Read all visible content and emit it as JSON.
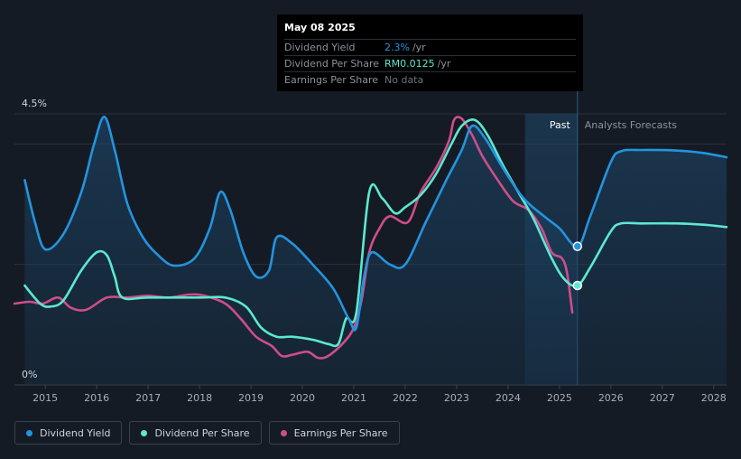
{
  "tooltip": {
    "date": "May 08 2025",
    "rows": [
      {
        "label": "Dividend Yield",
        "value": "2.3%",
        "unit": "/yr",
        "color": "#2394df"
      },
      {
        "label": "Dividend Per Share",
        "value": "RM0.0125",
        "unit": "/yr",
        "color": "#5de8d0"
      },
      {
        "label": "Earnings Per Share",
        "value": "No data",
        "unit": "",
        "color": "#6b7280"
      }
    ]
  },
  "legend": [
    {
      "label": "Dividend Yield",
      "color": "#2394df"
    },
    {
      "label": "Dividend Per Share",
      "color": "#5de8d0"
    },
    {
      "label": "Earnings Per Share",
      "color": "#cf4d8a"
    }
  ],
  "chart_data": {
    "type": "line",
    "y_axis": {
      "min": 0,
      "max": 4.5,
      "tick_labels": [
        "4.5%",
        "0%"
      ]
    },
    "x_axis": {
      "min": 2014.4,
      "max": 2028.25,
      "tick_labels": [
        "2015",
        "2016",
        "2017",
        "2018",
        "2019",
        "2020",
        "2021",
        "2022",
        "2023",
        "2024",
        "2025",
        "2026",
        "2027",
        "2028"
      ]
    },
    "past_label": "Past",
    "forecast_label": "Analysts Forecasts",
    "past_region": [
      2024.33,
      2025.35
    ],
    "series": [
      {
        "name": "Dividend Yield",
        "color": "#2394df",
        "filled": true,
        "points": [
          [
            2014.6,
            3.4
          ],
          [
            2014.8,
            2.7
          ],
          [
            2015.0,
            2.25
          ],
          [
            2015.35,
            2.5
          ],
          [
            2015.7,
            3.2
          ],
          [
            2015.95,
            4.0
          ],
          [
            2016.15,
            4.45
          ],
          [
            2016.35,
            3.9
          ],
          [
            2016.6,
            3.0
          ],
          [
            2016.9,
            2.45
          ],
          [
            2017.2,
            2.15
          ],
          [
            2017.5,
            1.98
          ],
          [
            2017.9,
            2.1
          ],
          [
            2018.2,
            2.6
          ],
          [
            2018.4,
            3.2
          ],
          [
            2018.6,
            2.9
          ],
          [
            2018.85,
            2.2
          ],
          [
            2019.1,
            1.8
          ],
          [
            2019.35,
            1.9
          ],
          [
            2019.5,
            2.45
          ],
          [
            2019.8,
            2.35
          ],
          [
            2020.2,
            2.0
          ],
          [
            2020.6,
            1.6
          ],
          [
            2020.9,
            1.1
          ],
          [
            2021.05,
            0.95
          ],
          [
            2021.2,
            1.8
          ],
          [
            2021.35,
            2.2
          ],
          [
            2021.7,
            2.0
          ],
          [
            2022.0,
            2.0
          ],
          [
            2022.4,
            2.7
          ],
          [
            2022.8,
            3.4
          ],
          [
            2023.1,
            3.9
          ],
          [
            2023.3,
            4.3
          ],
          [
            2023.55,
            4.1
          ],
          [
            2023.9,
            3.6
          ],
          [
            2024.3,
            3.1
          ],
          [
            2024.7,
            2.8
          ],
          [
            2025.0,
            2.6
          ],
          [
            2025.35,
            2.3
          ],
          [
            2025.6,
            2.8
          ],
          [
            2026.0,
            3.7
          ],
          [
            2026.2,
            3.88
          ],
          [
            2026.6,
            3.9
          ],
          [
            2027.3,
            3.89
          ],
          [
            2027.8,
            3.85
          ],
          [
            2028.25,
            3.78
          ]
        ]
      },
      {
        "name": "Dividend Per Share",
        "color": "#5de8d0",
        "filled": false,
        "points": [
          [
            2014.6,
            1.65
          ],
          [
            2014.9,
            1.35
          ],
          [
            2015.1,
            1.3
          ],
          [
            2015.35,
            1.4
          ],
          [
            2015.7,
            1.9
          ],
          [
            2016.0,
            2.2
          ],
          [
            2016.2,
            2.15
          ],
          [
            2016.35,
            1.8
          ],
          [
            2016.5,
            1.45
          ],
          [
            2017.0,
            1.45
          ],
          [
            2018.0,
            1.45
          ],
          [
            2018.5,
            1.45
          ],
          [
            2018.9,
            1.3
          ],
          [
            2019.2,
            0.95
          ],
          [
            2019.5,
            0.8
          ],
          [
            2019.8,
            0.8
          ],
          [
            2020.2,
            0.75
          ],
          [
            2020.5,
            0.68
          ],
          [
            2020.7,
            0.68
          ],
          [
            2020.85,
            1.1
          ],
          [
            2021.05,
            1.2
          ],
          [
            2021.3,
            3.2
          ],
          [
            2021.55,
            3.1
          ],
          [
            2021.8,
            2.85
          ],
          [
            2022.0,
            2.95
          ],
          [
            2022.3,
            3.15
          ],
          [
            2022.6,
            3.5
          ],
          [
            2022.9,
            4.0
          ],
          [
            2023.1,
            4.3
          ],
          [
            2023.35,
            4.4
          ],
          [
            2023.6,
            4.15
          ],
          [
            2023.9,
            3.65
          ],
          [
            2024.2,
            3.2
          ],
          [
            2024.5,
            2.75
          ],
          [
            2024.85,
            2.1
          ],
          [
            2025.1,
            1.75
          ],
          [
            2025.35,
            1.65
          ],
          [
            2025.6,
            1.95
          ],
          [
            2026.0,
            2.55
          ],
          [
            2026.2,
            2.68
          ],
          [
            2026.6,
            2.68
          ],
          [
            2027.3,
            2.68
          ],
          [
            2027.8,
            2.66
          ],
          [
            2028.25,
            2.62
          ]
        ]
      },
      {
        "name": "Earnings Per Share",
        "color": "#cf4d8a",
        "filled": false,
        "points": [
          [
            2014.4,
            1.35
          ],
          [
            2014.7,
            1.38
          ],
          [
            2014.95,
            1.35
          ],
          [
            2015.25,
            1.45
          ],
          [
            2015.5,
            1.28
          ],
          [
            2015.8,
            1.25
          ],
          [
            2016.2,
            1.45
          ],
          [
            2016.6,
            1.45
          ],
          [
            2017.0,
            1.48
          ],
          [
            2017.4,
            1.45
          ],
          [
            2017.8,
            1.5
          ],
          [
            2018.1,
            1.48
          ],
          [
            2018.5,
            1.35
          ],
          [
            2018.8,
            1.1
          ],
          [
            2019.1,
            0.8
          ],
          [
            2019.4,
            0.65
          ],
          [
            2019.6,
            0.48
          ],
          [
            2019.8,
            0.5
          ],
          [
            2020.1,
            0.55
          ],
          [
            2020.3,
            0.45
          ],
          [
            2020.5,
            0.48
          ],
          [
            2020.8,
            0.7
          ],
          [
            2021.0,
            0.95
          ],
          [
            2021.15,
            1.4
          ],
          [
            2021.3,
            2.2
          ],
          [
            2021.5,
            2.6
          ],
          [
            2021.7,
            2.8
          ],
          [
            2022.05,
            2.7
          ],
          [
            2022.3,
            3.2
          ],
          [
            2022.6,
            3.6
          ],
          [
            2022.85,
            4.05
          ],
          [
            2022.95,
            4.4
          ],
          [
            2023.1,
            4.42
          ],
          [
            2023.3,
            4.15
          ],
          [
            2023.5,
            3.8
          ],
          [
            2023.8,
            3.4
          ],
          [
            2024.1,
            3.05
          ],
          [
            2024.4,
            2.9
          ],
          [
            2024.65,
            2.6
          ],
          [
            2024.85,
            2.2
          ],
          [
            2025.05,
            2.1
          ],
          [
            2025.15,
            1.85
          ],
          [
            2025.25,
            1.2
          ]
        ]
      }
    ],
    "markers": [
      {
        "series": "Dividend Yield",
        "x": 2025.35,
        "y": 2.3
      },
      {
        "series": "Dividend Per Share",
        "x": 2025.35,
        "y": 1.65
      }
    ]
  }
}
